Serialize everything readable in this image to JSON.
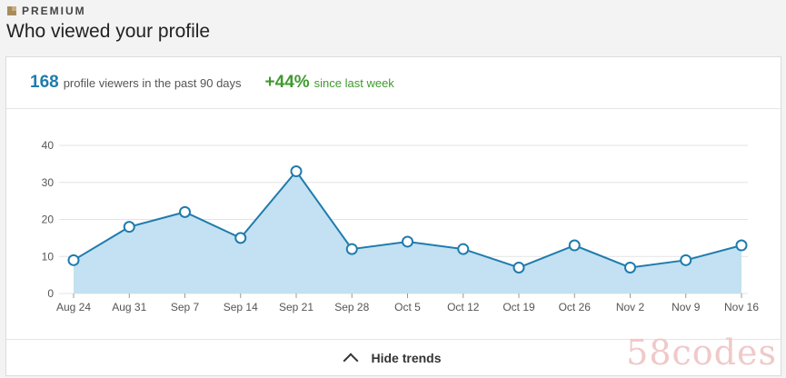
{
  "header": {
    "premium_label": "PREMIUM",
    "title": "Who viewed your profile"
  },
  "stats": {
    "viewers_count": "168",
    "viewers_text": "profile viewers in the past 90 days",
    "change": "+44%",
    "change_text": "since last week"
  },
  "footer": {
    "toggle_label": "Hide trends"
  },
  "watermark": "58codes",
  "colors": {
    "line": "#1f7cad",
    "fill": "#c3e1f2",
    "grid": "#e3e3e3",
    "accent_green": "#3f9a2e"
  },
  "chart_data": {
    "type": "area",
    "categories": [
      "Aug 24",
      "Aug 31",
      "Sep 7",
      "Sep 14",
      "Sep 21",
      "Sep 28",
      "Oct 5",
      "Oct 12",
      "Oct 19",
      "Oct 26",
      "Nov 2",
      "Nov 9",
      "Nov 16"
    ],
    "values": [
      9,
      18,
      22,
      15,
      33,
      12,
      14,
      12,
      7,
      13,
      7,
      9,
      13
    ],
    "yticks": [
      0,
      10,
      20,
      30,
      40
    ],
    "ylim": [
      0,
      40
    ],
    "grid": true
  }
}
